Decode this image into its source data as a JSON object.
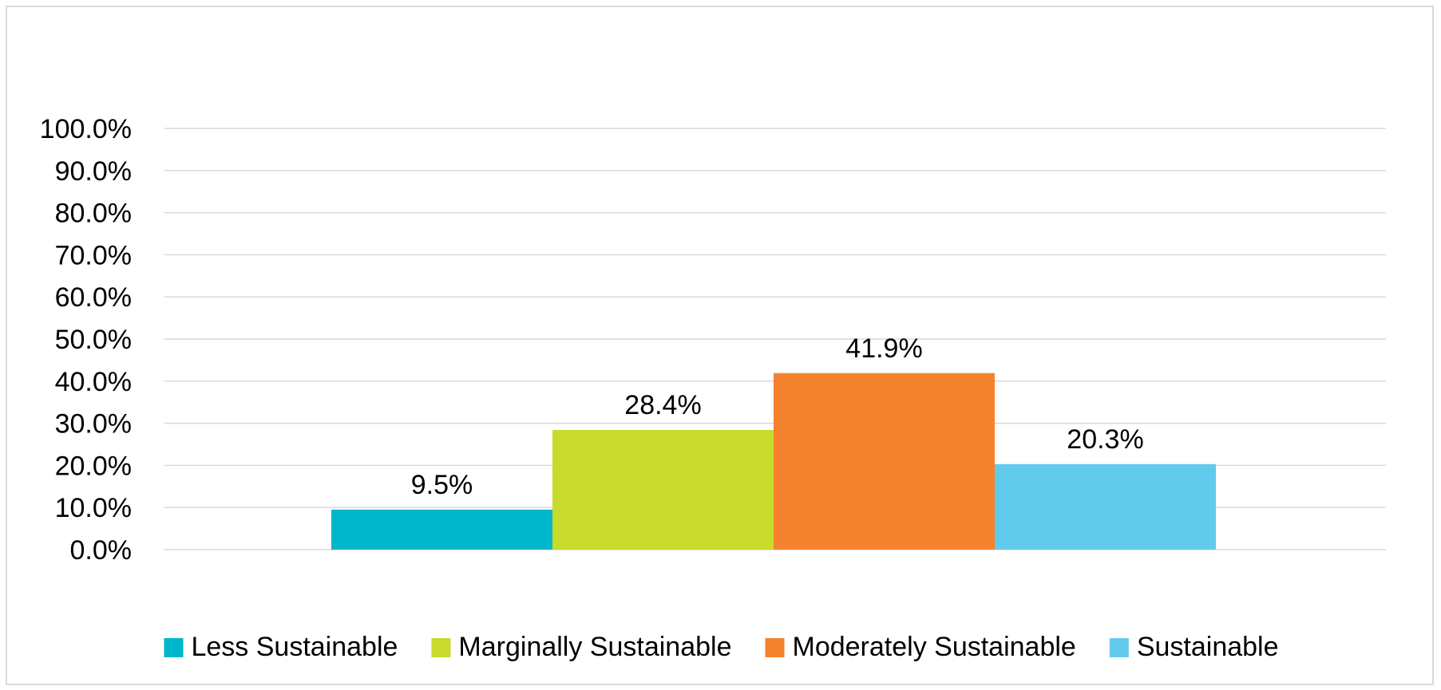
{
  "chart_data": {
    "type": "bar",
    "title": "",
    "xlabel": "",
    "ylabel": "",
    "ylim": [
      0,
      100
    ],
    "yticks": [
      0,
      10,
      20,
      30,
      40,
      50,
      60,
      70,
      80,
      90,
      100
    ],
    "ytick_labels": [
      "0.0%",
      "10.0%",
      "20.0%",
      "30.0%",
      "40.0%",
      "50.0%",
      "60.0%",
      "70.0%",
      "80.0%",
      "90.0%",
      "100.0%"
    ],
    "grid": true,
    "legend_position": "bottom",
    "series": [
      {
        "name": "Less Sustainable",
        "value": 9.5,
        "label": "9.5%",
        "color": "#00b6cb"
      },
      {
        "name": "Marginally Sustainable",
        "value": 28.4,
        "label": "28.4%",
        "color": "#c8da2b"
      },
      {
        "name": "Moderately Sustainable",
        "value": 41.9,
        "label": "41.9%",
        "color": "#f5822e"
      },
      {
        "name": "Sustainable",
        "value": 20.3,
        "label": "20.3%",
        "color": "#62cbec"
      }
    ],
    "gridline_color": "#d9d9d9",
    "axis_line_color": "#d9d9d9"
  }
}
